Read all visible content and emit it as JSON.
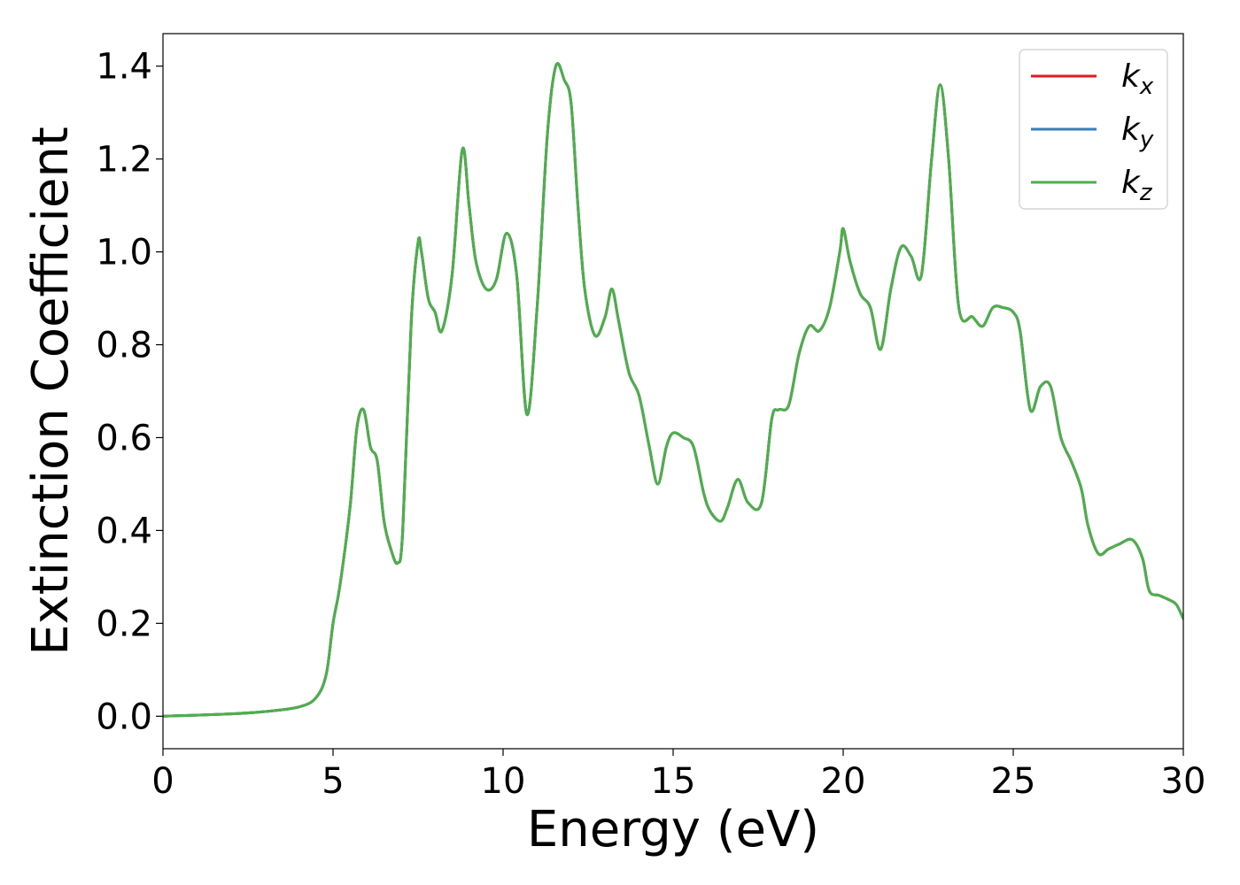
{
  "chart_data": {
    "type": "line",
    "title": "",
    "xlabel": "Energy (eV)",
    "ylabel": "Extinction Coefficient",
    "xlim": [
      0,
      30
    ],
    "ylim": [
      -0.07,
      1.47
    ],
    "xticks": [
      0,
      5,
      10,
      15,
      20,
      25,
      30
    ],
    "xtick_labels": [
      "0",
      "5",
      "10",
      "15",
      "20",
      "25",
      "30"
    ],
    "yticks": [
      0.0,
      0.2,
      0.4,
      0.6,
      0.8,
      1.0,
      1.2,
      1.4
    ],
    "ytick_labels": [
      "0.0",
      "0.2",
      "0.4",
      "0.6",
      "0.8",
      "1.0",
      "1.2",
      "1.4"
    ],
    "grid": false,
    "legend_position": "top-right",
    "series": [
      {
        "name": "k_x",
        "label_main": "k",
        "label_sub": "x",
        "color": "#e41a1c",
        "x": [
          0,
          2,
          3,
          4,
          4.5,
          4.8,
          5.0,
          5.2,
          5.5,
          5.7,
          5.9,
          6.1,
          6.3,
          6.5,
          6.7,
          6.9,
          7.05,
          7.3,
          7.5,
          7.6,
          7.8,
          8.0,
          8.2,
          8.5,
          8.8,
          9.0,
          9.2,
          9.5,
          9.8,
          10.1,
          10.4,
          10.7,
          11.0,
          11.3,
          11.55,
          11.8,
          12.0,
          12.2,
          12.4,
          12.7,
          13.0,
          13.2,
          13.4,
          13.7,
          14.0,
          14.3,
          14.55,
          14.8,
          15.0,
          15.3,
          15.6,
          15.9,
          16.1,
          16.4,
          16.6,
          16.9,
          17.2,
          17.6,
          17.9,
          18.1,
          18.4,
          18.7,
          19.0,
          19.3,
          19.6,
          19.9,
          20.0,
          20.2,
          20.5,
          20.8,
          21.1,
          21.4,
          21.7,
          22.0,
          22.3,
          22.6,
          22.85,
          23.1,
          23.4,
          23.8,
          24.1,
          24.4,
          24.7,
          25.0,
          25.2,
          25.5,
          25.8,
          26.1,
          26.4,
          26.7,
          27.0,
          27.2,
          27.5,
          27.8,
          28.1,
          28.5,
          28.8,
          29.0,
          29.3,
          29.6,
          29.8,
          30.0
        ],
        "y": [
          0,
          0.005,
          0.01,
          0.02,
          0.04,
          0.09,
          0.2,
          0.28,
          0.45,
          0.62,
          0.66,
          0.58,
          0.55,
          0.42,
          0.36,
          0.33,
          0.4,
          0.85,
          1.02,
          1.0,
          0.9,
          0.87,
          0.83,
          0.95,
          1.22,
          1.1,
          0.98,
          0.92,
          0.94,
          1.04,
          0.95,
          0.65,
          0.88,
          1.25,
          1.4,
          1.37,
          1.32,
          1.1,
          0.92,
          0.82,
          0.86,
          0.92,
          0.85,
          0.74,
          0.69,
          0.58,
          0.5,
          0.58,
          0.61,
          0.6,
          0.58,
          0.48,
          0.44,
          0.42,
          0.45,
          0.51,
          0.46,
          0.46,
          0.64,
          0.66,
          0.67,
          0.78,
          0.84,
          0.83,
          0.88,
          1.0,
          1.05,
          0.98,
          0.91,
          0.88,
          0.79,
          0.92,
          1.01,
          0.99,
          0.95,
          1.2,
          1.36,
          1.2,
          0.88,
          0.86,
          0.84,
          0.88,
          0.88,
          0.87,
          0.83,
          0.66,
          0.71,
          0.71,
          0.6,
          0.55,
          0.49,
          0.41,
          0.35,
          0.36,
          0.37,
          0.38,
          0.34,
          0.27,
          0.26,
          0.25,
          0.24,
          0.21
        ]
      },
      {
        "name": "k_y",
        "label_main": "k",
        "label_sub": "y",
        "color": "#377eb8",
        "x": [
          0,
          2,
          3,
          4,
          4.5,
          4.8,
          5.0,
          5.2,
          5.5,
          5.7,
          5.9,
          6.1,
          6.3,
          6.5,
          6.7,
          6.9,
          7.05,
          7.3,
          7.5,
          7.6,
          7.8,
          8.0,
          8.2,
          8.5,
          8.8,
          9.0,
          9.2,
          9.5,
          9.8,
          10.1,
          10.4,
          10.7,
          11.0,
          11.3,
          11.55,
          11.8,
          12.0,
          12.2,
          12.4,
          12.7,
          13.0,
          13.2,
          13.4,
          13.7,
          14.0,
          14.3,
          14.55,
          14.8,
          15.0,
          15.3,
          15.6,
          15.9,
          16.1,
          16.4,
          16.6,
          16.9,
          17.2,
          17.6,
          17.9,
          18.1,
          18.4,
          18.7,
          19.0,
          19.3,
          19.6,
          19.9,
          20.0,
          20.2,
          20.5,
          20.8,
          21.1,
          21.4,
          21.7,
          22.0,
          22.3,
          22.6,
          22.85,
          23.1,
          23.4,
          23.8,
          24.1,
          24.4,
          24.7,
          25.0,
          25.2,
          25.5,
          25.8,
          26.1,
          26.4,
          26.7,
          27.0,
          27.2,
          27.5,
          27.8,
          28.1,
          28.5,
          28.8,
          29.0,
          29.3,
          29.6,
          29.8,
          30.0
        ],
        "y": [
          0,
          0.005,
          0.01,
          0.02,
          0.04,
          0.09,
          0.2,
          0.28,
          0.45,
          0.62,
          0.66,
          0.58,
          0.55,
          0.42,
          0.36,
          0.33,
          0.4,
          0.85,
          1.02,
          1.0,
          0.9,
          0.87,
          0.83,
          0.95,
          1.22,
          1.1,
          0.98,
          0.92,
          0.94,
          1.04,
          0.95,
          0.65,
          0.88,
          1.25,
          1.4,
          1.37,
          1.32,
          1.1,
          0.92,
          0.82,
          0.86,
          0.92,
          0.85,
          0.74,
          0.69,
          0.58,
          0.5,
          0.58,
          0.61,
          0.6,
          0.58,
          0.48,
          0.44,
          0.42,
          0.45,
          0.51,
          0.46,
          0.46,
          0.64,
          0.66,
          0.67,
          0.78,
          0.84,
          0.83,
          0.88,
          1.0,
          1.05,
          0.98,
          0.91,
          0.88,
          0.79,
          0.92,
          1.01,
          0.99,
          0.95,
          1.2,
          1.36,
          1.2,
          0.88,
          0.86,
          0.84,
          0.88,
          0.88,
          0.87,
          0.83,
          0.66,
          0.71,
          0.71,
          0.6,
          0.55,
          0.49,
          0.41,
          0.35,
          0.36,
          0.37,
          0.38,
          0.34,
          0.27,
          0.26,
          0.25,
          0.24,
          0.21
        ]
      },
      {
        "name": "k_z",
        "label_main": "k",
        "label_sub": "z",
        "color": "#4daf4a",
        "x": [
          0,
          2,
          3,
          4,
          4.5,
          4.8,
          5.0,
          5.2,
          5.5,
          5.7,
          5.9,
          6.1,
          6.3,
          6.5,
          6.7,
          6.9,
          7.05,
          7.3,
          7.5,
          7.6,
          7.8,
          8.0,
          8.2,
          8.5,
          8.8,
          9.0,
          9.2,
          9.5,
          9.8,
          10.1,
          10.4,
          10.7,
          11.0,
          11.3,
          11.55,
          11.8,
          12.0,
          12.2,
          12.4,
          12.7,
          13.0,
          13.2,
          13.4,
          13.7,
          14.0,
          14.3,
          14.55,
          14.8,
          15.0,
          15.3,
          15.6,
          15.9,
          16.1,
          16.4,
          16.6,
          16.9,
          17.2,
          17.6,
          17.9,
          18.1,
          18.4,
          18.7,
          19.0,
          19.3,
          19.6,
          19.9,
          20.0,
          20.2,
          20.5,
          20.8,
          21.1,
          21.4,
          21.7,
          22.0,
          22.3,
          22.6,
          22.85,
          23.1,
          23.4,
          23.8,
          24.1,
          24.4,
          24.7,
          25.0,
          25.2,
          25.5,
          25.8,
          26.1,
          26.4,
          26.7,
          27.0,
          27.2,
          27.5,
          27.8,
          28.1,
          28.5,
          28.8,
          29.0,
          29.3,
          29.6,
          29.8,
          30.0
        ],
        "y": [
          0,
          0.005,
          0.01,
          0.02,
          0.04,
          0.09,
          0.2,
          0.28,
          0.45,
          0.62,
          0.66,
          0.58,
          0.55,
          0.42,
          0.36,
          0.33,
          0.4,
          0.85,
          1.02,
          1.0,
          0.9,
          0.87,
          0.83,
          0.95,
          1.22,
          1.1,
          0.98,
          0.92,
          0.94,
          1.04,
          0.95,
          0.65,
          0.88,
          1.25,
          1.4,
          1.37,
          1.32,
          1.1,
          0.92,
          0.82,
          0.86,
          0.92,
          0.85,
          0.74,
          0.69,
          0.58,
          0.5,
          0.58,
          0.61,
          0.6,
          0.58,
          0.48,
          0.44,
          0.42,
          0.45,
          0.51,
          0.46,
          0.46,
          0.64,
          0.66,
          0.67,
          0.78,
          0.84,
          0.83,
          0.88,
          1.0,
          1.05,
          0.98,
          0.91,
          0.88,
          0.79,
          0.92,
          1.01,
          0.99,
          0.95,
          1.2,
          1.36,
          1.2,
          0.88,
          0.86,
          0.84,
          0.88,
          0.88,
          0.87,
          0.83,
          0.66,
          0.71,
          0.71,
          0.6,
          0.55,
          0.49,
          0.41,
          0.35,
          0.36,
          0.37,
          0.38,
          0.34,
          0.27,
          0.26,
          0.25,
          0.24,
          0.21
        ]
      }
    ]
  }
}
